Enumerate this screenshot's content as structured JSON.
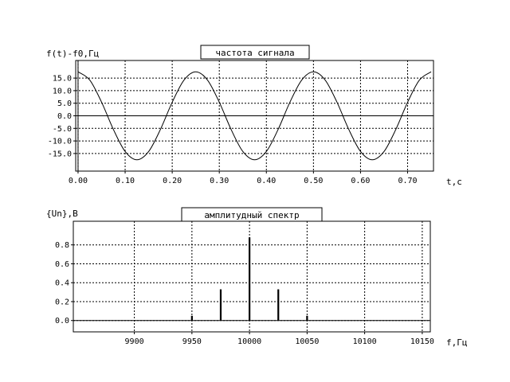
{
  "chart_data": [
    {
      "type": "line",
      "title": "частота сигнала",
      "ylabel": "f(t)-f0,Гц",
      "xlabel": "t,c",
      "xlim": [
        -0.005,
        0.755
      ],
      "ylim": [
        -22,
        22
      ],
      "xticks": [
        "0.00",
        "0.10",
        "0.20",
        "0.30",
        "0.40",
        "0.50",
        "0.60",
        "0.70"
      ],
      "yticks": [
        "15.0",
        "10.0",
        "5.0",
        "0.0",
        "-5.0",
        "-10.0",
        "-15.0"
      ],
      "grid": true,
      "series": [
        {
          "x": [
            0.0,
            0.025,
            0.05,
            0.075,
            0.1,
            0.125,
            0.15,
            0.175,
            0.2,
            0.225,
            0.25,
            0.275,
            0.3,
            0.325,
            0.35,
            0.375,
            0.4,
            0.425,
            0.45,
            0.475,
            0.5,
            0.525,
            0.55,
            0.575,
            0.6,
            0.625,
            0.65,
            0.675,
            0.7,
            0.725,
            0.75
          ],
          "y": [
            17.5,
            14.2,
            5.4,
            -5.4,
            -14.2,
            -17.5,
            -14.2,
            -5.4,
            5.4,
            14.2,
            17.5,
            14.2,
            5.4,
            -5.4,
            -14.2,
            -17.5,
            -14.2,
            -5.4,
            5.4,
            14.2,
            17.5,
            14.2,
            5.4,
            -5.4,
            -14.2,
            -17.5,
            -14.2,
            -5.4,
            5.4,
            14.2,
            17.5
          ]
        }
      ]
    },
    {
      "type": "bar",
      "title": "амплитудный спектр",
      "ylabel": "{Un},B",
      "xlabel": "f,Гц",
      "xlim": [
        9847,
        10157
      ],
      "ylim": [
        -0.12,
        1.05
      ],
      "xticks": [
        "9900",
        "9950",
        "10000",
        "10050",
        "10100",
        "10150"
      ],
      "yticks": [
        "0.8",
        "0.6",
        "0.4",
        "0.2",
        "0.0"
      ],
      "grid": true,
      "series": [
        {
          "x": [
            9950,
            9975,
            10000,
            10025,
            10050
          ],
          "values": [
            0.05,
            0.33,
            0.88,
            0.33,
            0.05
          ]
        }
      ]
    }
  ]
}
